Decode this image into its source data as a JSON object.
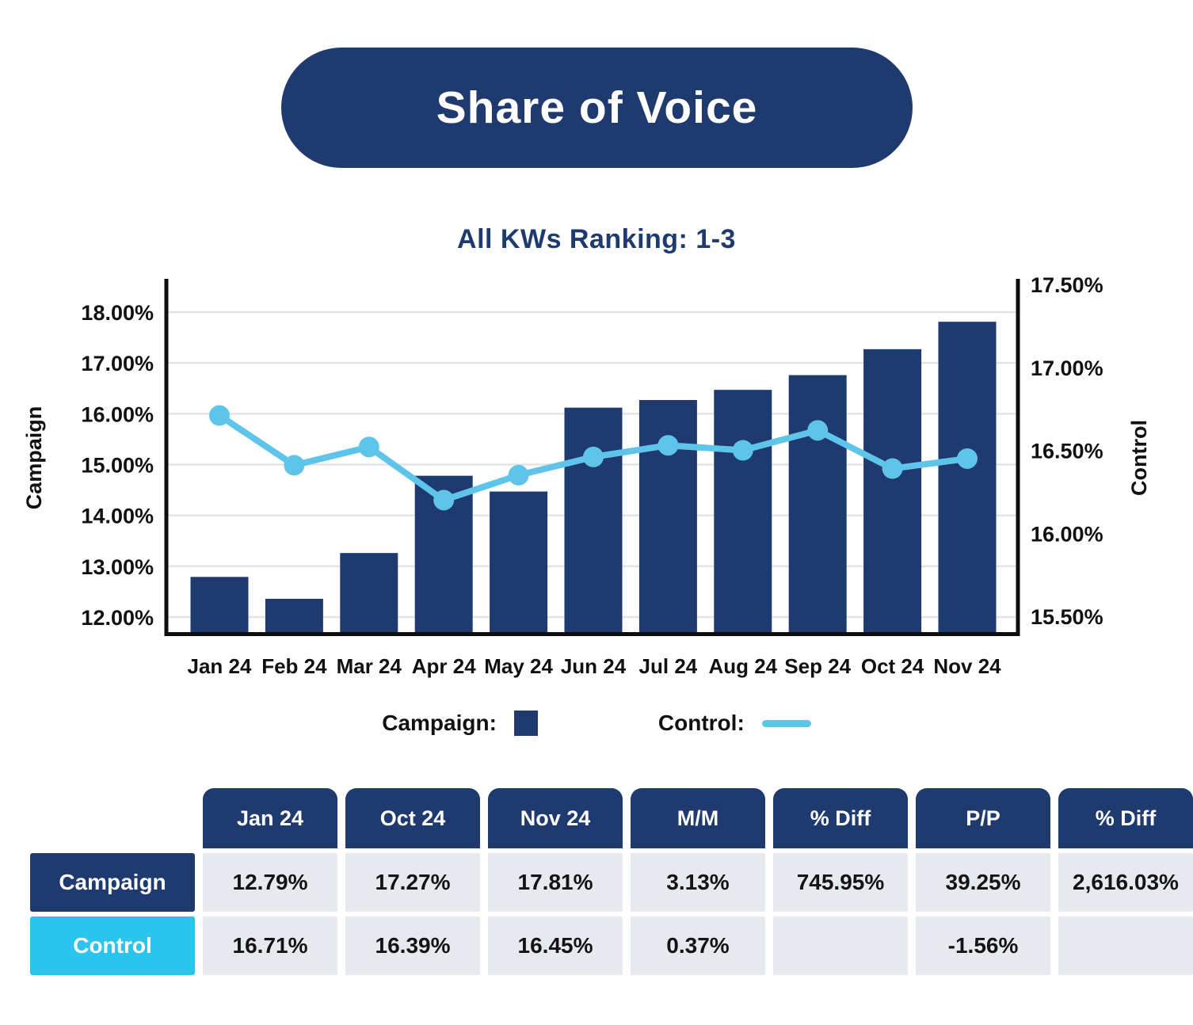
{
  "title": "Share of Voice",
  "subtitle": "All KWs Ranking: 1-3",
  "colors": {
    "navy": "#1e3a6e",
    "cyan": "#2bc4ec",
    "line_blue": "#5ec4ea",
    "cell_gray": "#e6e9ee",
    "grid_gray": "#e3e3e3",
    "axis_black": "#0d0d0d"
  },
  "chart_data": {
    "type": "combo",
    "categories": [
      "Jan 24",
      "Feb 24",
      "Mar 24",
      "Apr 24",
      "May 24",
      "Jun 24",
      "Jul 24",
      "Aug 24",
      "Sep 24",
      "Oct 24",
      "Nov 24"
    ],
    "series": [
      {
        "name": "Campaign",
        "type": "bar",
        "axis": "left",
        "values": [
          12.79,
          12.36,
          13.26,
          14.78,
          14.47,
          16.12,
          16.27,
          16.47,
          16.76,
          17.27,
          17.81
        ]
      },
      {
        "name": "Control",
        "type": "line",
        "axis": "right",
        "values": [
          16.71,
          16.41,
          16.52,
          16.2,
          16.35,
          16.46,
          16.53,
          16.5,
          16.62,
          16.39,
          16.45
        ]
      }
    ],
    "left_axis": {
      "label": "Campaign",
      "min": 12,
      "max": 18,
      "tick_step": 1,
      "tick_labels": [
        "12.00%",
        "13.00%",
        "14.00%",
        "15.00%",
        "16.00%",
        "17.00%",
        "18.00%"
      ]
    },
    "right_axis": {
      "label": "Control",
      "min": 15.5,
      "max": 17.5,
      "tick_step": 0.5,
      "tick_labels": [
        "15.50%",
        "16.00%",
        "16.50%",
        "17.00%",
        "17.50%"
      ]
    },
    "grid": "horizontal-left-ticks",
    "legend_position": "bottom"
  },
  "legend": {
    "campaign_label": "Campaign:",
    "control_label": "Control:"
  },
  "table": {
    "columns": [
      "Jan 24",
      "Oct 24",
      "Nov 24",
      "M/M",
      "% Diff",
      "P/P",
      "% Diff"
    ],
    "rows": [
      {
        "label": "Campaign",
        "values": [
          "12.79%",
          "17.27%",
          "17.81%",
          "3.13%",
          "745.95%",
          "39.25%",
          "2,616.03%"
        ]
      },
      {
        "label": "Control",
        "values": [
          "16.71%",
          "16.39%",
          "16.45%",
          "0.37%",
          "",
          "-1.56%",
          ""
        ]
      }
    ]
  }
}
